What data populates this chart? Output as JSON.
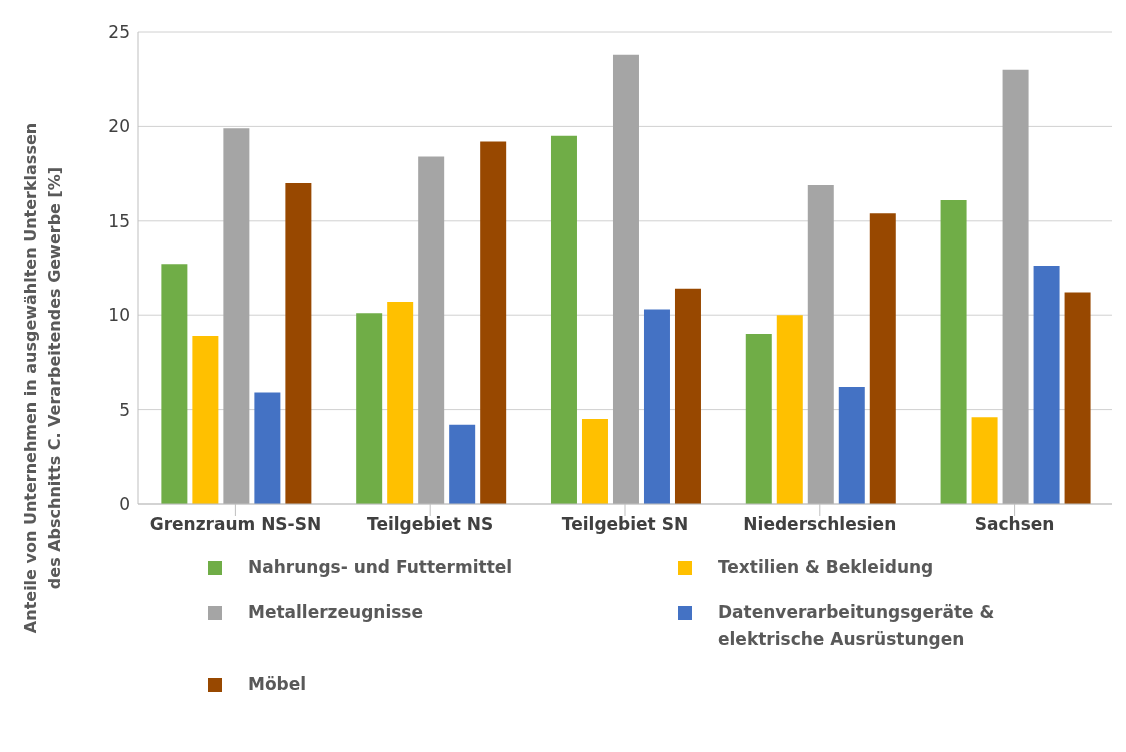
{
  "chart_data": {
    "type": "bar",
    "ylabel": "Anteile von Unternehmen in ausgewählten Unterklassen\ndes Abschnitts C. Verarbeitendes Gewerbe [%]",
    "categories": [
      "Grenzraum NS-SN",
      "Teilgebiet NS",
      "Teilgebiet SN",
      "Niederschlesien",
      "Sachsen"
    ],
    "series": [
      {
        "name": "Nahrungs- und Futtermittel",
        "color": "#70ad47",
        "values": [
          12.7,
          10.1,
          19.5,
          9.0,
          16.1
        ]
      },
      {
        "name": "Textilien & Bekleidung",
        "color": "#ffc000",
        "values": [
          8.9,
          10.7,
          4.5,
          10.0,
          4.6
        ]
      },
      {
        "name": "Metallerzeugnisse",
        "color": "#a5a5a5",
        "values": [
          19.9,
          18.4,
          23.8,
          16.9,
          23.0
        ]
      },
      {
        "name": "Datenverarbeitungsgeräte & elektrische Ausrüstungen",
        "color": "#4472c4",
        "values": [
          5.9,
          4.2,
          10.3,
          6.2,
          12.6
        ]
      },
      {
        "name": "Möbel",
        "color": "#984800",
        "values": [
          17.0,
          19.2,
          11.4,
          15.4,
          11.2
        ]
      }
    ],
    "ylim": [
      0,
      25
    ],
    "yticks": [
      0,
      5,
      10,
      15,
      20,
      25
    ],
    "grid": "y",
    "legend": "bottom"
  }
}
